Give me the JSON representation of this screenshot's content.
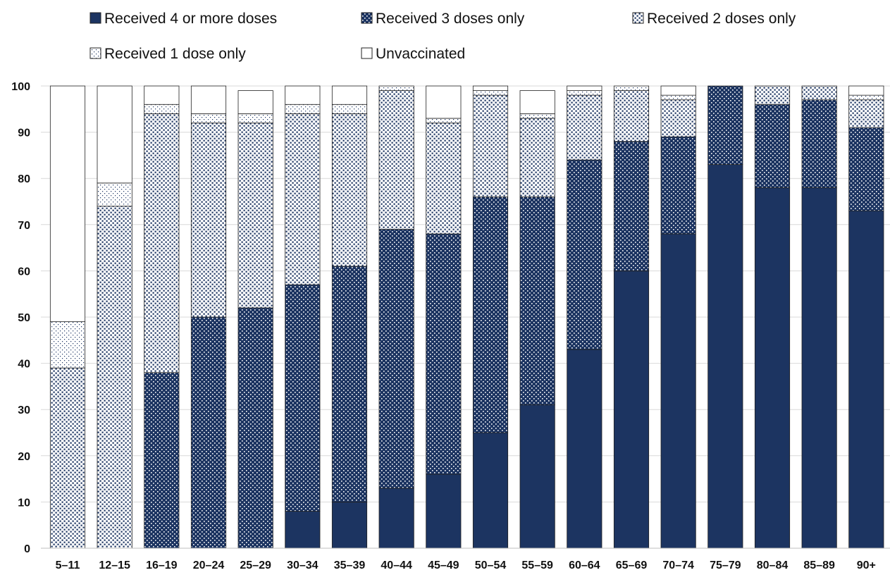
{
  "chart_data": {
    "type": "bar",
    "stacked": true,
    "title": "",
    "xlabel": "",
    "ylabel": "",
    "ylim": [
      0,
      100
    ],
    "yticks": [
      0,
      10,
      20,
      30,
      40,
      50,
      60,
      70,
      80,
      90,
      100
    ],
    "grid": true,
    "legend_position": "top",
    "categories": [
      "5–11",
      "12–15",
      "16–19",
      "20–24",
      "25–29",
      "30–34",
      "35–39",
      "40–44",
      "45–49",
      "50–54",
      "55–59",
      "60–64",
      "65–69",
      "70–74",
      "75–79",
      "80–84",
      "85–89",
      "90+"
    ],
    "series": [
      {
        "name": "Received 4 or more doses",
        "color": "#1c3461",
        "pattern": "solid",
        "values": [
          0,
          0,
          0,
          0,
          0,
          8,
          10,
          13,
          16,
          25,
          31,
          43,
          60,
          68,
          83,
          78,
          78,
          73
        ]
      },
      {
        "name": "Received 3 doses only",
        "color": "#1c3461",
        "pattern": "dense-dots",
        "values": [
          0,
          0,
          38,
          50,
          52,
          49,
          51,
          56,
          52,
          51,
          45,
          41,
          28,
          21,
          17,
          18,
          19,
          18
        ]
      },
      {
        "name": "Received 2 doses only",
        "color": "#1c3461",
        "pattern": "medium-dots",
        "values": [
          39,
          74,
          56,
          42,
          40,
          37,
          33,
          30,
          24,
          22,
          17,
          14,
          11,
          8,
          0,
          4,
          3,
          6
        ]
      },
      {
        "name": "Received 1 dose only",
        "color": "#1c3461",
        "pattern": "sparse-dots",
        "values": [
          10,
          5,
          2,
          2,
          2,
          2,
          2,
          1,
          1,
          1,
          1,
          1,
          1,
          1,
          0,
          0,
          0,
          1
        ]
      },
      {
        "name": "Unvaccinated",
        "color": "#ffffff",
        "pattern": "none",
        "values": [
          51,
          21,
          4,
          6,
          5,
          4,
          4,
          0,
          7,
          1,
          5,
          1,
          0,
          2,
          0,
          0,
          0,
          2
        ]
      }
    ]
  }
}
